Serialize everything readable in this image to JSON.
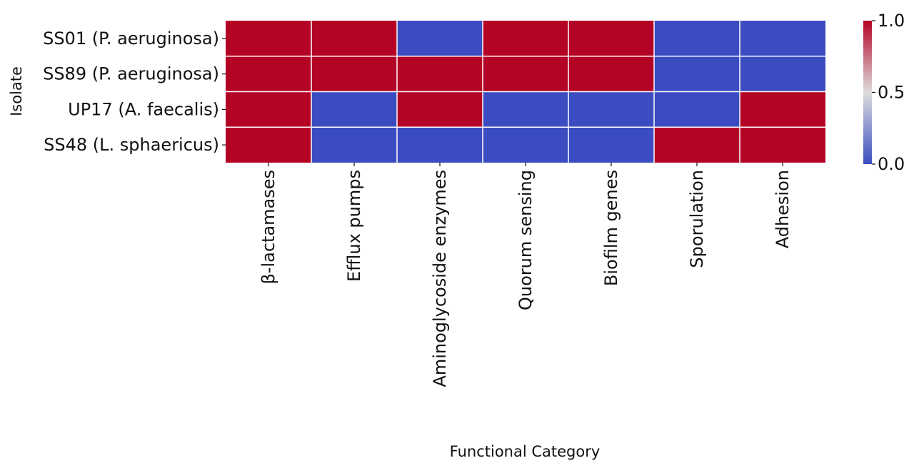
{
  "chart_data": {
    "type": "heatmap",
    "title": "",
    "xlabel": "Functional Category",
    "ylabel": "Isolate",
    "rows": [
      "SS01 (P. aeruginosa)",
      "SS89 (P. aeruginosa)",
      "UP17 (A. faecalis)",
      "SS48 (L. sphaericus)"
    ],
    "columns": [
      "β-lactamases",
      "Efflux pumps",
      "Aminoglycoside enzymes",
      "Quorum sensing",
      "Biofilm genes",
      "Sporulation",
      "Adhesion"
    ],
    "values": [
      [
        1,
        1,
        0,
        1,
        1,
        0,
        0
      ],
      [
        1,
        1,
        1,
        1,
        1,
        0,
        0
      ],
      [
        1,
        0,
        1,
        0,
        0,
        0,
        1
      ],
      [
        1,
        0,
        0,
        0,
        0,
        1,
        1
      ]
    ],
    "colormap": "coolwarm",
    "colors": {
      "low": "#3b4cc0",
      "mid": "#dddddd",
      "high": "#b40426",
      "grid": "#ffffff"
    },
    "colorbar": {
      "min": 0.0,
      "max": 1.0,
      "ticks": [
        "0.0",
        "0.5",
        "1.0"
      ]
    }
  }
}
